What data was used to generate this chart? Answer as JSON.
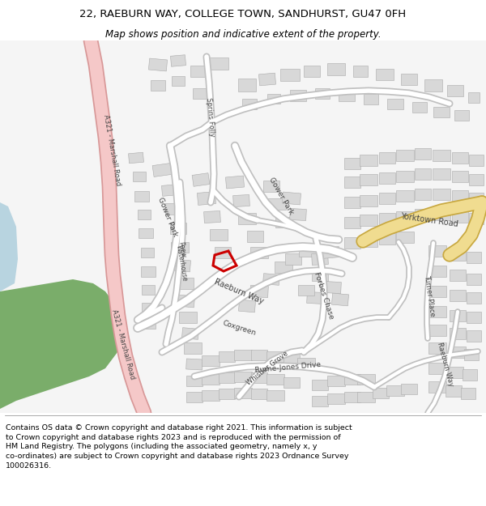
{
  "title_line1": "22, RAEBURN WAY, COLLEGE TOWN, SANDHURST, GU47 0FH",
  "title_line2": "Map shows position and indicative extent of the property.",
  "footer_text": "Contains OS data © Crown copyright and database right 2021. This information is subject\nto Crown copyright and database rights 2023 and is reproduced with the permission of\nHM Land Registry. The polygons (including the associated geometry, namely x, y\nco-ordinates) are subject to Crown copyright and database rights 2023 Ordnance Survey\n100026316.",
  "map_bg": "#f5f5f5",
  "building_color": "#d8d8d8",
  "building_outline": "#aaaaaa",
  "green_color": "#7aad6a",
  "blue_color": "#b8d4e0",
  "a321_fill": "#f5c8c8",
  "a321_outline": "#d89898",
  "yellow_fill": "#f0dc90",
  "yellow_outline": "#c8a840",
  "road_fill": "#ffffff",
  "road_outline": "#c0c0c0",
  "highlight_color": "#cc0000",
  "title_fontsize": 9.5,
  "subtitle_fontsize": 8.5,
  "footer_fontsize": 6.8,
  "fig_width": 6.0,
  "fig_height": 6.25
}
